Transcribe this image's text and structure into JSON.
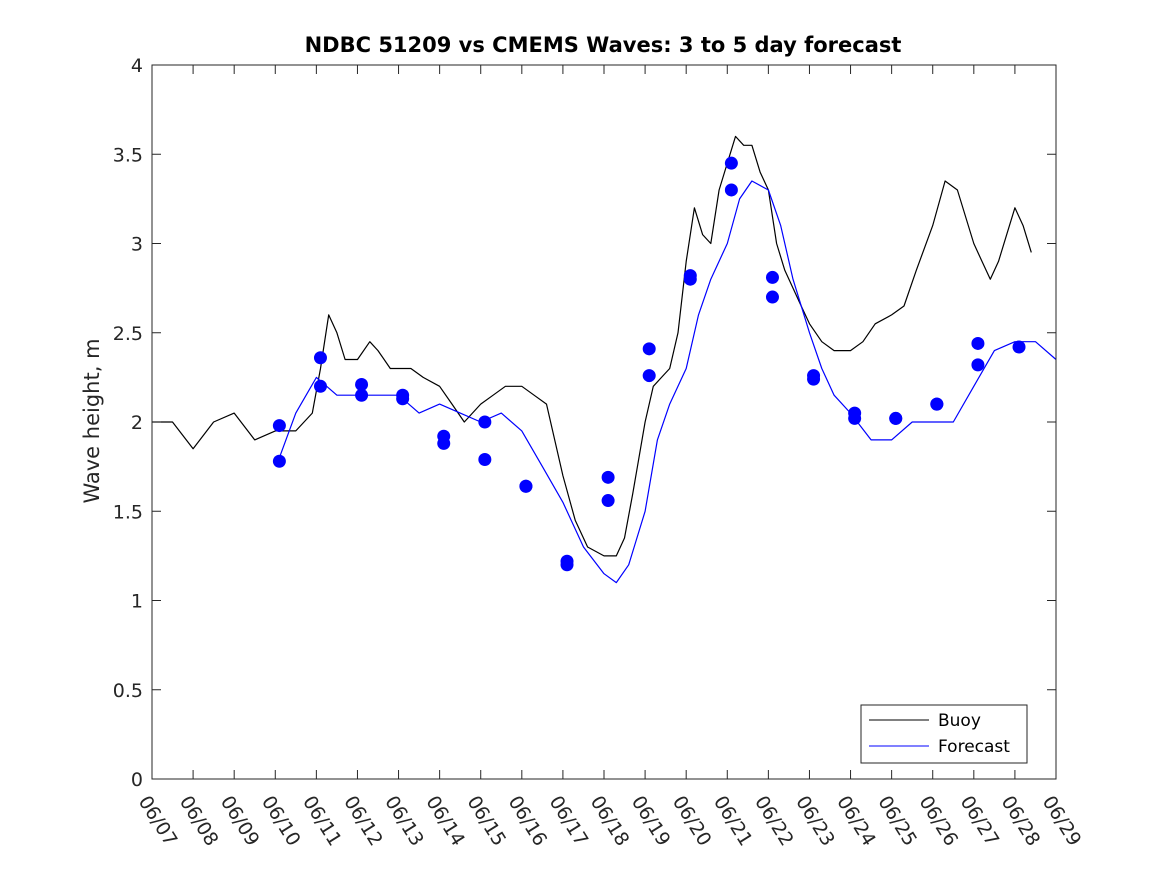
{
  "chart_data": {
    "type": "line",
    "title": "NDBC 51209 vs CMEMS Waves: 3 to 5 day forecast",
    "xlabel": "",
    "ylabel": "Wave height, m",
    "ylim": [
      0,
      4
    ],
    "yticks": [
      "0",
      "0.5",
      "1",
      "1.5",
      "2",
      "2.5",
      "3",
      "3.5",
      "4"
    ],
    "xlim": [
      0,
      22
    ],
    "x_unit": "days since 06/07",
    "xticks": [
      "06/07",
      "06/08",
      "06/09",
      "06/10",
      "06/11",
      "06/12",
      "06/13",
      "06/14",
      "06/15",
      "06/16",
      "06/17",
      "06/18",
      "06/19",
      "06/20",
      "06/21",
      "06/22",
      "06/23",
      "06/24",
      "06/25",
      "06/26",
      "06/27",
      "06/28",
      "06/29"
    ],
    "grid": false,
    "legend": {
      "placement": "bottom-right",
      "entries": [
        "Buoy",
        "Forecast"
      ]
    },
    "colors": {
      "buoy": "#000000",
      "forecast": "#0000ff"
    },
    "series": [
      {
        "name": "Buoy",
        "x": [
          0,
          0.5,
          1,
          1.5,
          2,
          2.5,
          3,
          3.5,
          3.9,
          4.1,
          4.3,
          4.5,
          4.7,
          5,
          5.3,
          5.5,
          5.8,
          6,
          6.3,
          6.6,
          7,
          7.3,
          7.6,
          8,
          8.3,
          8.6,
          9,
          9.3,
          9.6,
          10,
          10.3,
          10.6,
          11,
          11.3,
          11.5,
          11.7,
          12,
          12.2,
          12.4,
          12.6,
          12.8,
          13,
          13.2,
          13.4,
          13.6,
          13.8,
          14,
          14.2,
          14.4,
          14.6,
          14.8,
          15,
          15.2,
          15.4,
          15.6,
          15.8,
          16,
          16.3,
          16.6,
          17,
          17.3,
          17.6,
          18,
          18.3,
          18.6,
          19,
          19.3,
          19.6,
          20,
          20.2,
          20.4,
          20.6,
          20.8,
          21,
          21.2,
          21.4
        ],
        "values": [
          2.0,
          2.0,
          1.85,
          2.0,
          2.05,
          1.9,
          1.95,
          1.95,
          2.05,
          2.3,
          2.6,
          2.5,
          2.35,
          2.35,
          2.45,
          2.4,
          2.3,
          2.3,
          2.3,
          2.25,
          2.2,
          2.1,
          2.0,
          2.1,
          2.15,
          2.2,
          2.2,
          2.15,
          2.1,
          1.7,
          1.45,
          1.3,
          1.25,
          1.25,
          1.35,
          1.6,
          2.0,
          2.2,
          2.25,
          2.3,
          2.5,
          2.9,
          3.2,
          3.05,
          3.0,
          3.3,
          3.45,
          3.6,
          3.55,
          3.55,
          3.4,
          3.3,
          3.0,
          2.85,
          2.75,
          2.65,
          2.55,
          2.45,
          2.4,
          2.4,
          2.45,
          2.55,
          2.6,
          2.65,
          2.85,
          3.1,
          3.35,
          3.3,
          3.0,
          2.9,
          2.8,
          2.9,
          3.05,
          3.2,
          3.1,
          2.95
        ]
      },
      {
        "name": "Forecast",
        "x": [
          3.1,
          3.5,
          4,
          4.5,
          5,
          5.5,
          6,
          6.5,
          7,
          7.5,
          8,
          8.5,
          9,
          9.5,
          10,
          10.5,
          11,
          11.3,
          11.6,
          12,
          12.3,
          12.6,
          13,
          13.3,
          13.6,
          14,
          14.3,
          14.6,
          15,
          15.3,
          15.6,
          16,
          16.3,
          16.6,
          17,
          17.5,
          18,
          18.5,
          19,
          19.5,
          20,
          20.5,
          21,
          21.5,
          22
        ],
        "values": [
          1.8,
          2.05,
          2.25,
          2.15,
          2.15,
          2.15,
          2.15,
          2.05,
          2.1,
          2.05,
          2.0,
          2.05,
          1.95,
          1.75,
          1.55,
          1.3,
          1.15,
          1.1,
          1.2,
          1.5,
          1.9,
          2.1,
          2.3,
          2.6,
          2.8,
          3.0,
          3.25,
          3.35,
          3.3,
          3.1,
          2.8,
          2.5,
          2.3,
          2.15,
          2.05,
          1.9,
          1.9,
          2.0,
          2.0,
          2.0,
          2.2,
          2.4,
          2.45,
          2.45,
          2.35
        ]
      }
    ],
    "markers": {
      "name": "Forecast",
      "x": [
        3.1,
        3.1,
        4.1,
        4.1,
        5.1,
        5.1,
        6.1,
        6.1,
        7.1,
        7.1,
        8.1,
        8.1,
        9.1,
        9.1,
        10.1,
        10.1,
        11.1,
        11.1,
        12.1,
        12.1,
        13.1,
        13.1,
        14.1,
        14.1,
        15.1,
        15.1,
        16.1,
        16.1,
        17.1,
        17.1,
        18.1,
        18.1,
        19.1,
        19.1,
        20.1,
        20.1,
        21.1
      ],
      "values": [
        1.98,
        1.78,
        2.36,
        2.2,
        2.21,
        2.15,
        2.15,
        2.13,
        1.92,
        1.88,
        2.0,
        1.79,
        1.64,
        1.64,
        1.22,
        1.2,
        1.69,
        1.56,
        2.41,
        2.26,
        2.82,
        2.8,
        3.45,
        3.3,
        2.81,
        2.7,
        2.26,
        2.24,
        2.05,
        2.02,
        2.02,
        2.02,
        2.1,
        2.1,
        2.44,
        2.32,
        2.42
      ]
    }
  }
}
